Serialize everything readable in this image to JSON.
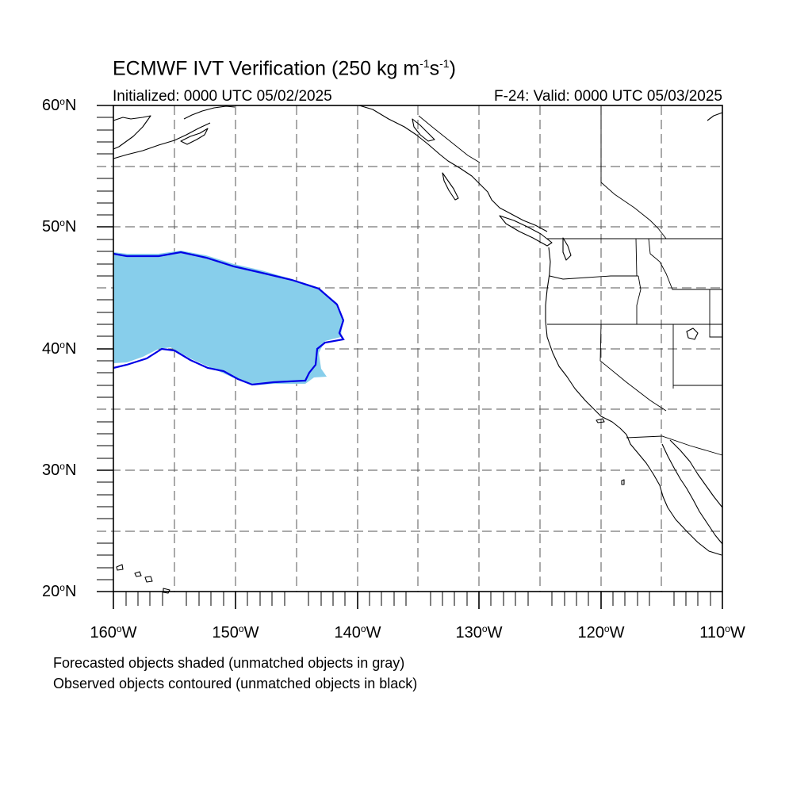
{
  "header": {
    "title_main": "ECMWF IVT Verification (250 kg m",
    "title_sup1": "-1",
    "title_mid": "s",
    "title_sup2": "-1",
    "title_end": ")",
    "initialized": "Initialized: 0000 UTC 05/02/2025",
    "valid": "F-24: Valid: 0000 UTC 05/03/2025"
  },
  "axes": {
    "lat_labels": [
      {
        "value": "60",
        "suffix": "N"
      },
      {
        "value": "50",
        "suffix": "N"
      },
      {
        "value": "40",
        "suffix": "N"
      },
      {
        "value": "30",
        "suffix": "N"
      },
      {
        "value": "20",
        "suffix": "N"
      }
    ],
    "lon_labels": [
      {
        "value": "160",
        "suffix": "W"
      },
      {
        "value": "150",
        "suffix": "W"
      },
      {
        "value": "140",
        "suffix": "W"
      },
      {
        "value": "130",
        "suffix": "W"
      },
      {
        "value": "120",
        "suffix": "W"
      },
      {
        "value": "110",
        "suffix": "W"
      }
    ],
    "degree_symbol": "o",
    "lat_range": [
      20,
      60
    ],
    "lon_range": [
      -160,
      -110
    ],
    "grid_interval_deg": 5,
    "grid_style": "dashed"
  },
  "captions": {
    "line1": "Forecasted objects shaded (unmatched objects in gray)",
    "line2": "Observed objects contoured (unmatched objects in black)"
  },
  "colors": {
    "forecast_fill": "#87ceeb",
    "observed_contour": "#0000e6",
    "coastline": "#000000",
    "grid": "#555555"
  }
}
